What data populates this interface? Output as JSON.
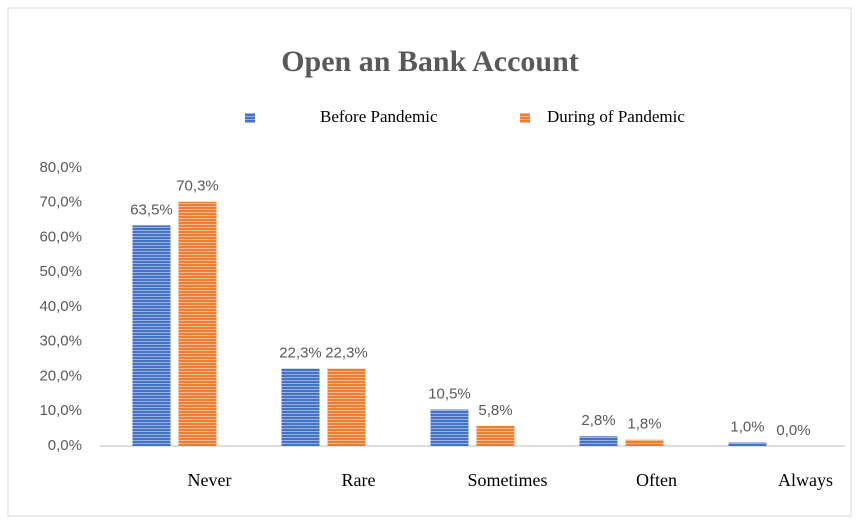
{
  "chart_data": {
    "type": "bar",
    "title": "Open an Bank Account",
    "categories": [
      "Never",
      "Rare",
      "Sometimes",
      "Often",
      "Always"
    ],
    "series": [
      {
        "name": "Before Pandemic",
        "color": "#4472c4",
        "values": [
          63.5,
          22.3,
          10.5,
          2.8,
          1.0
        ],
        "value_labels": [
          "63,5%",
          "22,3%",
          "10,5%",
          "2,8%",
          "1,0%"
        ]
      },
      {
        "name": "During of Pandemic",
        "color": "#ed7d31",
        "values": [
          70.3,
          22.3,
          5.8,
          1.8,
          0.0
        ],
        "value_labels": [
          "70,3%",
          "22,3%",
          "5,8%",
          "1,8%",
          "0,0%"
        ]
      }
    ],
    "ylim": [
      0,
      80
    ],
    "yticks": [
      {
        "value": 0,
        "label": "0,0%"
      },
      {
        "value": 10,
        "label": "10,0%"
      },
      {
        "value": 20,
        "label": "20,0%"
      },
      {
        "value": 30,
        "label": "30,0%"
      },
      {
        "value": 40,
        "label": "40,0%"
      },
      {
        "value": 50,
        "label": "50,0%"
      },
      {
        "value": 60,
        "label": "60,0%"
      },
      {
        "value": 70,
        "label": "70,0%"
      },
      {
        "value": 80,
        "label": "80,0%"
      }
    ],
    "grid": false,
    "legend": "top"
  }
}
